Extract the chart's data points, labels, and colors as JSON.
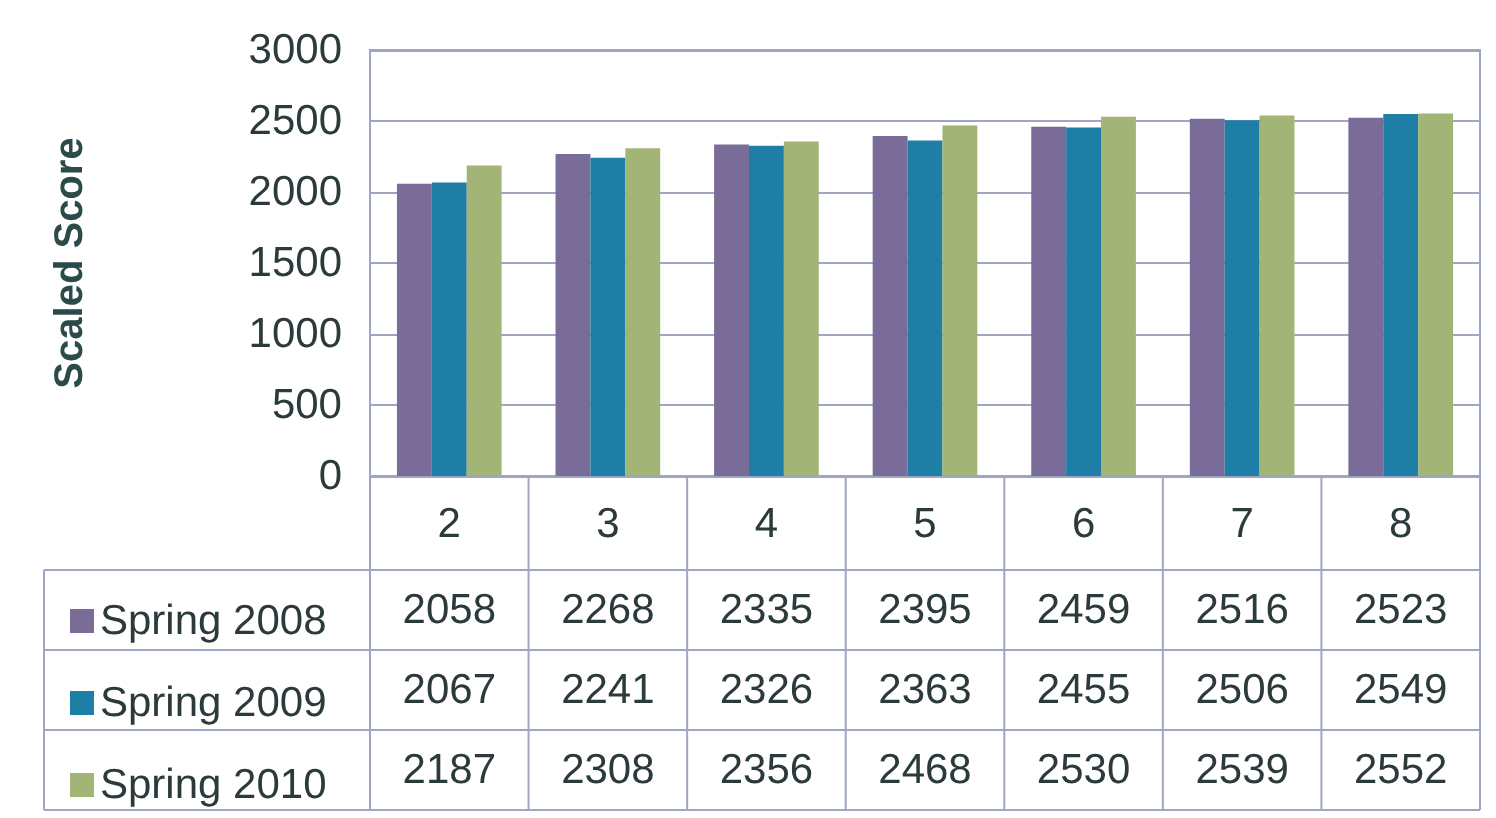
{
  "chart_data": {
    "type": "bar",
    "ylabel": "Scaled Score",
    "categories": [
      "2",
      "3",
      "4",
      "5",
      "6",
      "7",
      "8"
    ],
    "series": [
      {
        "name": "Spring 2008",
        "color": "#7a6c98",
        "values": [
          2058,
          2268,
          2335,
          2395,
          2459,
          2516,
          2523
        ]
      },
      {
        "name": "Spring 2009",
        "color": "#1f7ea6",
        "values": [
          2067,
          2241,
          2326,
          2363,
          2455,
          2506,
          2549
        ]
      },
      {
        "name": "Spring 2010",
        "color": "#a3b477",
        "values": [
          2187,
          2308,
          2356,
          2468,
          2530,
          2539,
          2552
        ]
      }
    ],
    "ylim": [
      0,
      3000
    ],
    "yticks": [
      0,
      500,
      1000,
      1500,
      2000,
      2500,
      3000
    ],
    "grid": "y",
    "legend": "bottom left",
    "data_labels": true
  }
}
